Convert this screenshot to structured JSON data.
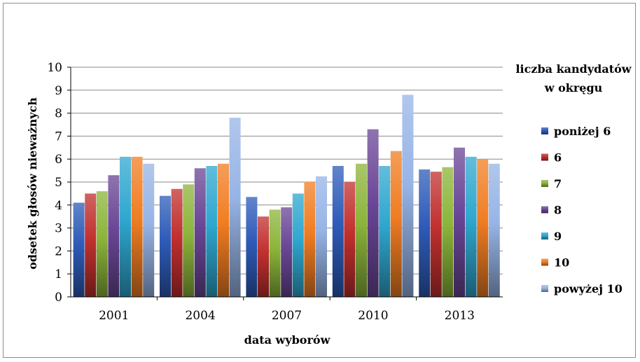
{
  "chart_data": {
    "type": "bar",
    "title": "",
    "xlabel": "data wyborów",
    "ylabel": "odsetek głosów nieważnych",
    "ylim": [
      0,
      10
    ],
    "yticks": [
      0,
      1,
      2,
      3,
      4,
      5,
      6,
      7,
      8,
      9,
      10
    ],
    "grid": true,
    "legend_position": "right",
    "legend_title": [
      "liczba kandydatów",
      "w okręgu"
    ],
    "categories": [
      "2001",
      "2004",
      "2007",
      "2010",
      "2013"
    ],
    "series": [
      {
        "name": "poniżej 6",
        "color": "#2e5bb8",
        "values": [
          4.1,
          4.4,
          4.35,
          5.7,
          5.55
        ]
      },
      {
        "name": "6",
        "color": "#c0302e",
        "values": [
          4.5,
          4.7,
          3.5,
          5.0,
          5.45
        ]
      },
      {
        "name": "7",
        "color": "#8cb43a",
        "values": [
          4.6,
          4.9,
          3.8,
          5.8,
          5.65
        ]
      },
      {
        "name": "8",
        "color": "#6a4696",
        "values": [
          5.3,
          5.6,
          3.9,
          7.3,
          6.5
        ]
      },
      {
        "name": "9",
        "color": "#2fa7cf",
        "values": [
          6.1,
          5.7,
          4.5,
          5.7,
          6.1
        ]
      },
      {
        "name": "10",
        "color": "#f07d22",
        "values": [
          6.1,
          5.8,
          5.0,
          6.35,
          6.0
        ]
      },
      {
        "name": "powyżej 10",
        "color": "#97b4e6",
        "values": [
          5.8,
          7.8,
          5.25,
          8.8,
          5.8
        ]
      }
    ]
  }
}
